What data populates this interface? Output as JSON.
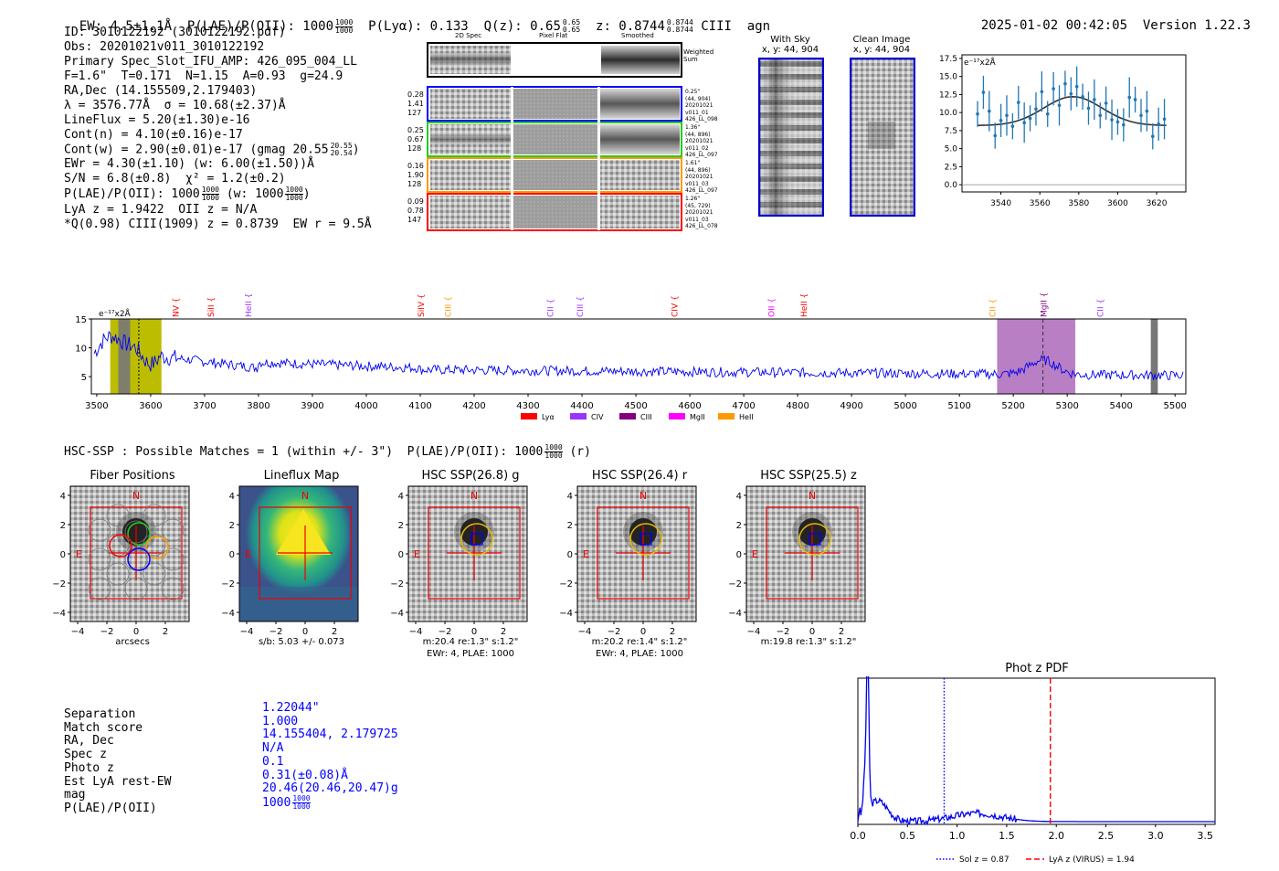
{
  "header": {
    "ew": "EW: 4.5±1.1Å",
    "plae_label": "P(LAE)/P(OII): 1000",
    "plae_frac": [
      "1000",
      "1000"
    ],
    "plya": "P(Lyα): 0.133",
    "qz_label": "Q(z): 0.65",
    "qz_frac": [
      "0.65",
      "0.65"
    ],
    "z_label": "z: 0.8744",
    "z_frac": [
      "0.8744",
      "0.8744"
    ],
    "line": "CIII",
    "tag": "agn",
    "datetime": "2025-01-02 00:42:05",
    "version": "Version 1.22.3"
  },
  "info": {
    "id": "ID: 3010122192 (3010122192.pdf)",
    "obs": "Obs: 20201021v011_3010122192",
    "slot": "Primary Spec_Slot_IFU_AMP: 426_095_004_LL",
    "params": "F=1.6\"  T=0.171  N=1.15  A=0.93  g=24.9",
    "radec": "RA,Dec (14.155509,2.179403)",
    "lambda": "λ = 3576.77Å  σ = 10.68(±2.37)Å",
    "lineflux": "LineFlux = 5.20(±1.30)e-16",
    "contn": "Cont(n) = 4.10(±0.16)e-17",
    "contw": "Cont(w) = 2.90(±0.01)e-17 (gmag 20.55",
    "contw_frac": [
      "20.55",
      "20.54"
    ],
    "ewr": "EWr = 4.30(±1.10) (w: 6.00(±1.50))Å",
    "sn": "S/N = 6.8(±0.8)  χ² = 1.2(±0.2)",
    "plae": "P(LAE)/P(OII): 1000",
    "plae_frac": [
      "1000",
      "1000"
    ],
    "plae_w": "(w: 1000",
    "plae_w_frac": [
      "1000",
      "1000"
    ],
    "lya": "LyA z = 1.9422  OII z = N/A",
    "ciii": "*Q(0.98) CIII(1909) z = 0.8739  EW r = 9.5Å"
  },
  "cutouts": {
    "col_headers": [
      "2D Spec",
      "Pixel Flat",
      "Smoothed"
    ],
    "weighted_sum": "Weighted Sum",
    "rows": [
      {
        "left": [
          "0.28",
          "1.41",
          "127"
        ],
        "right": [
          "0.25\"",
          "(44, 904)",
          "20201021",
          "v011_01",
          "426_LL_098"
        ],
        "color": "#0000ff"
      },
      {
        "left": [
          "0.25",
          "0.67",
          "128"
        ],
        "right": [
          "1.36\"",
          "(44, 896)",
          "20201021",
          "v011_02",
          "426_LL_097"
        ],
        "color": "#22cc22"
      },
      {
        "left": [
          "0.16",
          "1.90",
          "128"
        ],
        "right": [
          "1.61\"",
          "(44, 896)",
          "20201021",
          "v011_03",
          "426_LL_097"
        ],
        "color": "#ff9900"
      },
      {
        "left": [
          "0.09",
          "0.78",
          "147"
        ],
        "right": [
          "1.26\"",
          "(45, 729)",
          "20201021",
          "v011_03",
          "426_LL_078"
        ],
        "color": "#ff0000"
      }
    ],
    "with_sky": "With Sky",
    "with_sky_xy": "x, y: 44, 904",
    "clean": "Clean Image",
    "clean_xy": "x, y: 44, 904"
  },
  "zoom_chart": {
    "unit": "e⁻¹⁷x2Å",
    "yticks": [
      "17.5",
      "15.0",
      "12.5",
      "10.0",
      "7.5",
      "5.0",
      "2.5",
      "0.0"
    ],
    "xticks": [
      "3540",
      "3560",
      "3580",
      "3600",
      "3620"
    ]
  },
  "chart_data": [
    {
      "type": "scatter",
      "title": "",
      "ylabel": "e⁻¹⁷x2Å",
      "xlim": [
        3520,
        3635
      ],
      "ylim": [
        -1,
        18
      ],
      "x": [
        3528,
        3531,
        3534,
        3537,
        3540,
        3543,
        3546,
        3549,
        3552,
        3555,
        3558,
        3561,
        3564,
        3567,
        3570,
        3573,
        3576,
        3579,
        3582,
        3585,
        3588,
        3591,
        3594,
        3597,
        3600,
        3603,
        3606,
        3609,
        3612,
        3615,
        3618,
        3621,
        3624
      ],
      "y": [
        9.8,
        12.8,
        10.2,
        6.8,
        8.9,
        9.6,
        8.1,
        11.4,
        8.6,
        9.2,
        10.5,
        12.9,
        9.8,
        13.3,
        11.0,
        14.0,
        12.6,
        13.6,
        12.2,
        10.6,
        11.8,
        9.6,
        11.3,
        9.0,
        8.7,
        8.3,
        12.1,
        11.8,
        9.6,
        10.2,
        6.7,
        8.4,
        9.1
      ]
    },
    {
      "type": "line",
      "title": "",
      "ylabel": "e⁻¹⁷x2Å",
      "xlim": [
        3490,
        5520
      ],
      "ylim": [
        2,
        15
      ],
      "xticks": [
        "3500",
        "3600",
        "3700",
        "3800",
        "3900",
        "4000",
        "4100",
        "4200",
        "4300",
        "4400",
        "4500",
        "4600",
        "4700",
        "4800",
        "4900",
        "5000",
        "5100",
        "5200",
        "5300",
        "5400",
        "5500"
      ],
      "yticks": [
        "15",
        "10",
        "5"
      ],
      "line_markers": [
        {
          "name": "NV",
          "x": 3645,
          "color": "#ff0000"
        },
        {
          "name": "SiII",
          "x": 3710,
          "color": "#ff0000"
        },
        {
          "name": "HeII",
          "x": 3780,
          "color": "#9933ff"
        },
        {
          "name": "SiIV",
          "x": 4100,
          "color": "#ff0000"
        },
        {
          "name": "CIII",
          "x": 4150,
          "color": "#ff9900"
        },
        {
          "name": "CII",
          "x": 4340,
          "color": "#9933ff"
        },
        {
          "name": "CIII",
          "x": 4395,
          "color": "#9933ff"
        },
        {
          "name": "CIV",
          "x": 4570,
          "color": "#ff0000"
        },
        {
          "name": "OII",
          "x": 4750,
          "color": "#ff00ff"
        },
        {
          "name": "HeII",
          "x": 4810,
          "color": "#ff0000"
        },
        {
          "name": "CII",
          "x": 5160,
          "color": "#ff9900"
        },
        {
          "name": "MgII",
          "x": 5255,
          "color": "#800080"
        },
        {
          "name": "CII",
          "x": 5360,
          "color": "#9933ff"
        }
      ],
      "legend": [
        {
          "label": "Lyα",
          "color": "#ff0000"
        },
        {
          "label": "CIV",
          "color": "#9933ff"
        },
        {
          "label": "CIII",
          "color": "#800080"
        },
        {
          "label": "MgII",
          "color": "#ff00ff"
        },
        {
          "label": "HeII",
          "color": "#ff9900"
        }
      ]
    },
    {
      "type": "line",
      "title": "Phot z PDF",
      "xlim": [
        0.0,
        3.6
      ],
      "xticks": [
        "0.0",
        "0.5",
        "1.0",
        "1.5",
        "2.0",
        "2.5",
        "3.0",
        "3.5"
      ],
      "vlines": [
        {
          "label": "Sol z = 0.87",
          "x": 0.87,
          "color": "#0000ff",
          "style": "dotted"
        },
        {
          "label": "LyA z (VIRUS) = 1.94",
          "x": 1.94,
          "color": "#ff0000",
          "style": "dashed"
        }
      ]
    }
  ],
  "hsc": {
    "banner": "HSC-SSP : Possible Matches = 1 (within +/- 3\")  P(LAE)/P(OII): 1000",
    "banner_frac": [
      "1000",
      "1000"
    ],
    "banner_tail": "(r)",
    "panels": [
      {
        "title": "Fiber Positions",
        "caption": [
          "arcsecs"
        ]
      },
      {
        "title": "Lineflux Map",
        "caption": [
          "s/b: 5.03 +/- 0.073"
        ]
      },
      {
        "title": "HSC SSP(26.8) g",
        "caption": [
          "m:20.4  re:1.3\"  s:1.2\"",
          "EWr: 4, PLAE: 1000"
        ]
      },
      {
        "title": "HSC SSP(26.4) r",
        "caption": [
          "m:20.2  re:1.4\"  s:1.2\"",
          "EWr: 4, PLAE: 1000"
        ]
      },
      {
        "title": "HSC SSP(25.5) z",
        "caption": [
          "m:19.8  re:1.3\"  s:1.2\""
        ]
      }
    ],
    "axis_ticks": [
      "4",
      "2",
      "0",
      "−2",
      "−4"
    ],
    "xticks": [
      "−4",
      "−2",
      "0",
      "2",
      "4"
    ],
    "compass_n": "N",
    "compass_e": "E"
  },
  "match": {
    "labels": [
      "Separation",
      "Match score",
      "RA, Dec",
      "Spec z",
      "Photo z",
      "Est LyA rest-EW",
      "mag",
      "P(LAE)/P(OII)"
    ],
    "values": [
      "1.22044\"",
      "1.000",
      "14.155404, 2.179725",
      "N/A",
      "0.1",
      "0.31(±0.08)Å",
      "20.46(20.46,20.47)g",
      "1000"
    ],
    "plae_frac": [
      "1000",
      "1000"
    ]
  }
}
